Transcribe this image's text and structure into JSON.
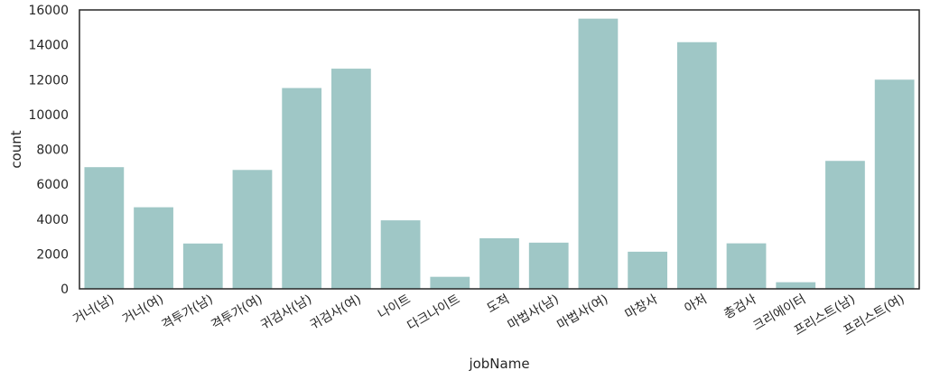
{
  "chart_data": {
    "type": "bar",
    "xlabel": "jobName",
    "ylabel": "count",
    "categories": [
      "거너(남)",
      "거너(여)",
      "격투가(남)",
      "격투가(여)",
      "귀검사(남)",
      "귀검사(여)",
      "나이트",
      "다크나이트",
      "도적",
      "마법사(남)",
      "마법사(여)",
      "마창사",
      "아처",
      "총검사",
      "크리에이터",
      "프리스트(남)",
      "프리스트(여)"
    ],
    "values": [
      6980,
      4680,
      2600,
      6820,
      11520,
      12630,
      3930,
      690,
      2900,
      2650,
      15500,
      2130,
      14150,
      2610,
      380,
      7340,
      12000
    ],
    "ylim": [
      0,
      16000
    ],
    "yticks": [
      "0",
      "2000",
      "4000",
      "6000",
      "8000",
      "10000",
      "12000",
      "14000",
      "16000"
    ],
    "grid": false,
    "bar_color": "#9fc7c6"
  }
}
